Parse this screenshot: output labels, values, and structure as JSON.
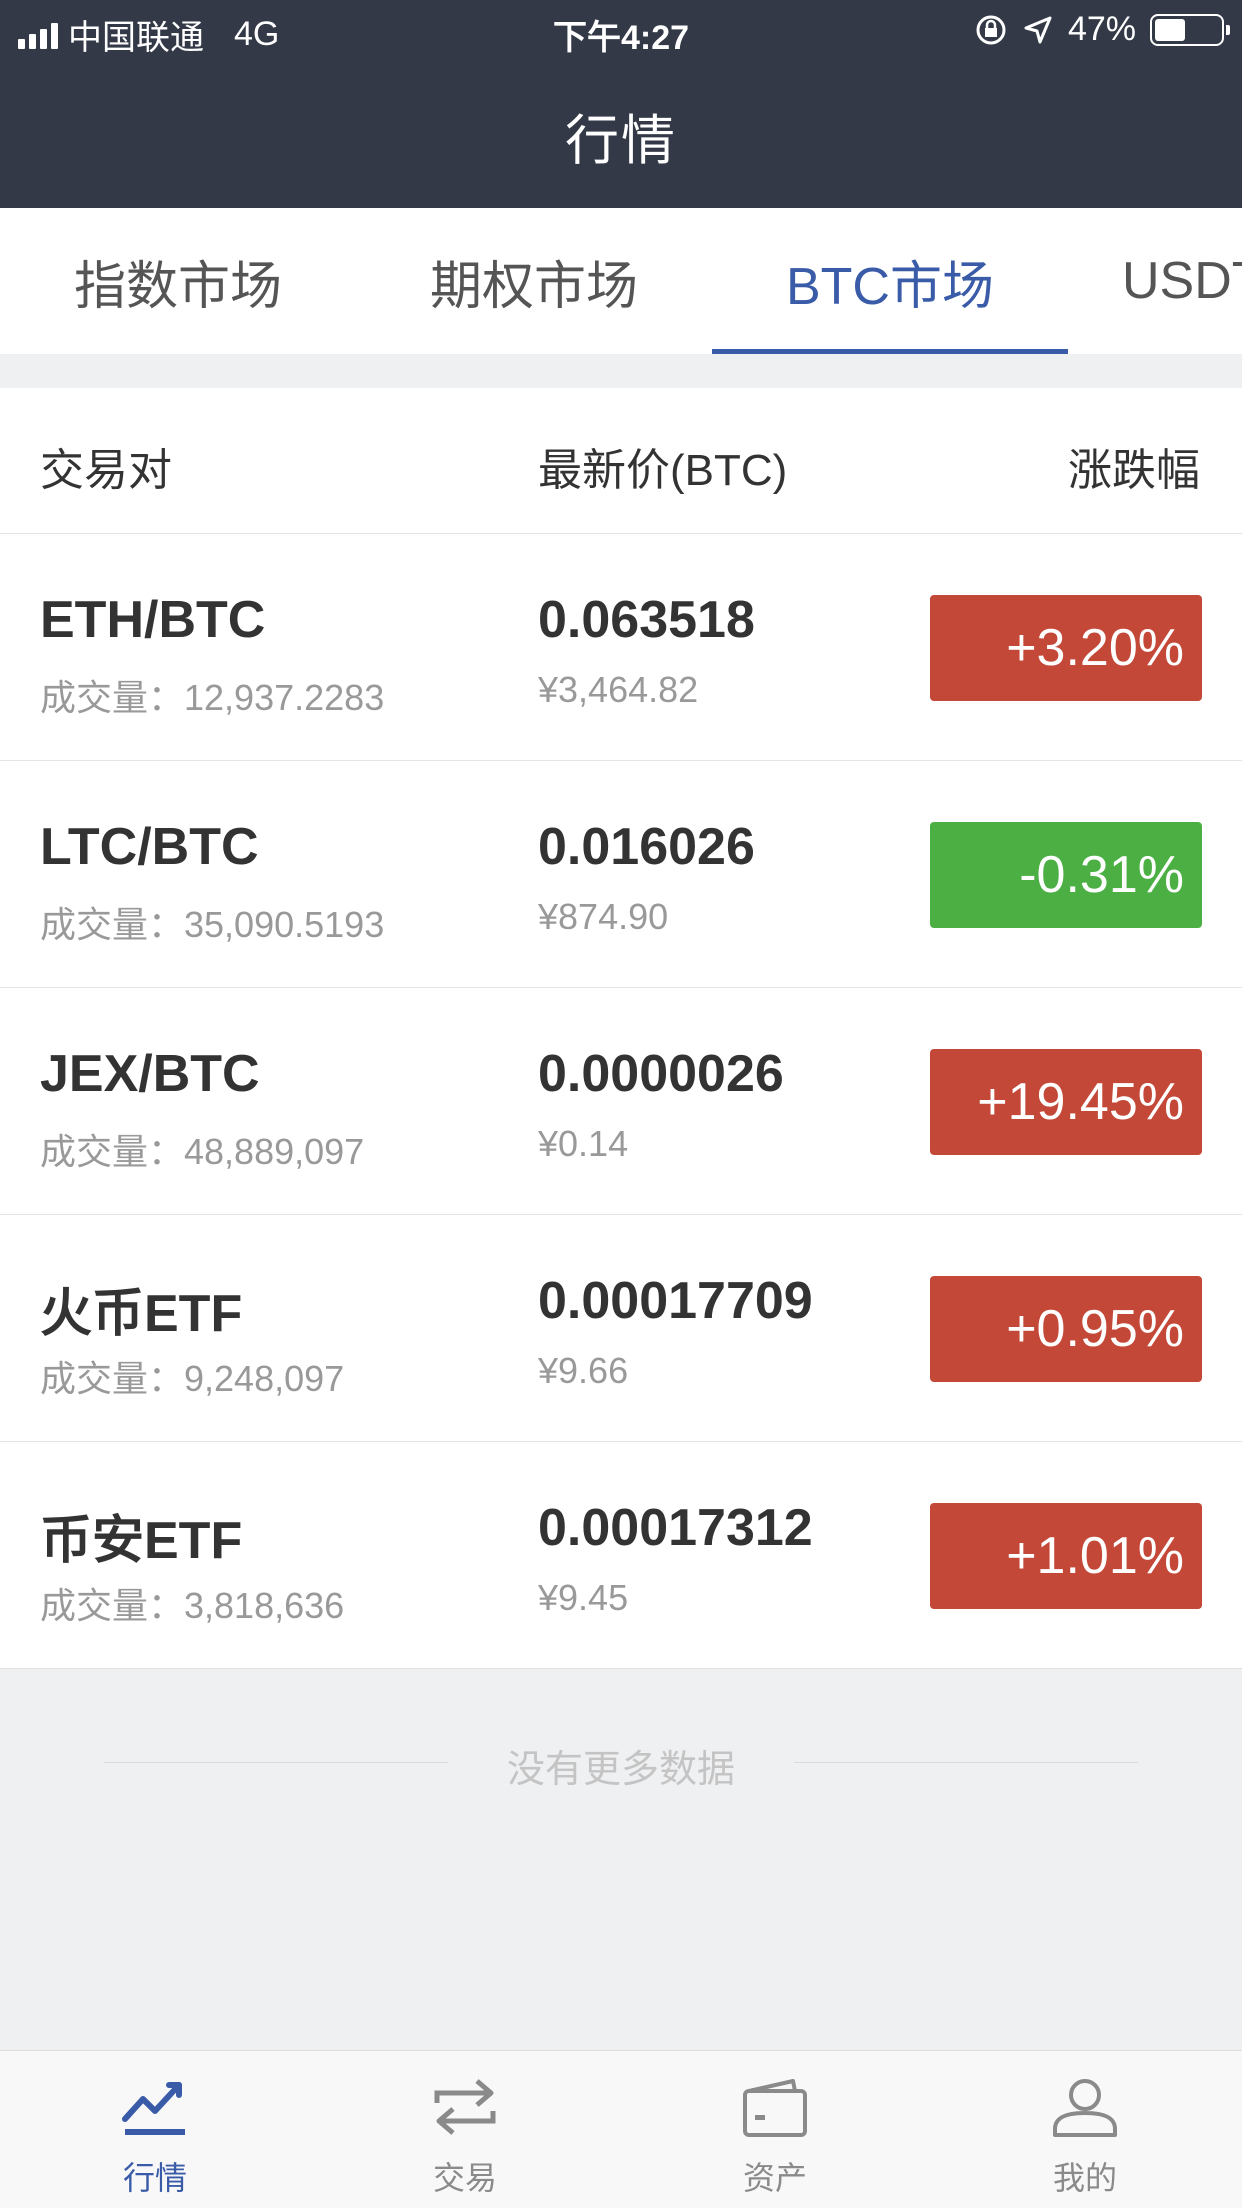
{
  "status_bar": {
    "carrier": "中国联通",
    "network": "4G",
    "time": "下午4:27",
    "battery": "47%",
    "battery_level": 0.47
  },
  "header": {
    "title": "行情"
  },
  "tabs": [
    {
      "label": "指数市场",
      "active": false
    },
    {
      "label": "期权市场",
      "active": false
    },
    {
      "label": "BTC市场",
      "active": true
    },
    {
      "label": "USDT",
      "active": false
    }
  ],
  "table": {
    "headers": {
      "pair": "交易对",
      "price": "最新价(BTC)",
      "change": "涨跌幅"
    },
    "volume_label": "成交量：",
    "rows": [
      {
        "pair": "ETH/BTC",
        "volume": "12,937.2283",
        "price": "0.063518",
        "cny": "¥3,464.82",
        "change": "+3.20%",
        "direction": "up"
      },
      {
        "pair": "LTC/BTC",
        "volume": "35,090.5193",
        "price": "0.016026",
        "cny": "¥874.90",
        "change": "-0.31%",
        "direction": "down"
      },
      {
        "pair": "JEX/BTC",
        "volume": "48,889,097",
        "price": "0.0000026",
        "cny": "¥0.14",
        "change": "+19.45%",
        "direction": "up"
      },
      {
        "pair": "火币ETF",
        "volume": "9,248,097",
        "price": "0.00017709",
        "cny": "¥9.66",
        "change": "+0.95%",
        "direction": "up"
      },
      {
        "pair": "币安ETF",
        "volume": "3,818,636",
        "price": "0.00017312",
        "cny": "¥9.45",
        "change": "+1.01%",
        "direction": "up"
      }
    ]
  },
  "footer_note": "没有更多数据",
  "bottom_nav": [
    {
      "label": "行情",
      "icon": "chart-icon",
      "active": true
    },
    {
      "label": "交易",
      "icon": "exchange-icon",
      "active": false
    },
    {
      "label": "资产",
      "icon": "wallet-icon",
      "active": false
    },
    {
      "label": "我的",
      "icon": "user-icon",
      "active": false
    }
  ],
  "colors": {
    "header_bg": "#333946",
    "accent": "#3a5ba8",
    "up": "#c44838",
    "down": "#4caf44"
  }
}
